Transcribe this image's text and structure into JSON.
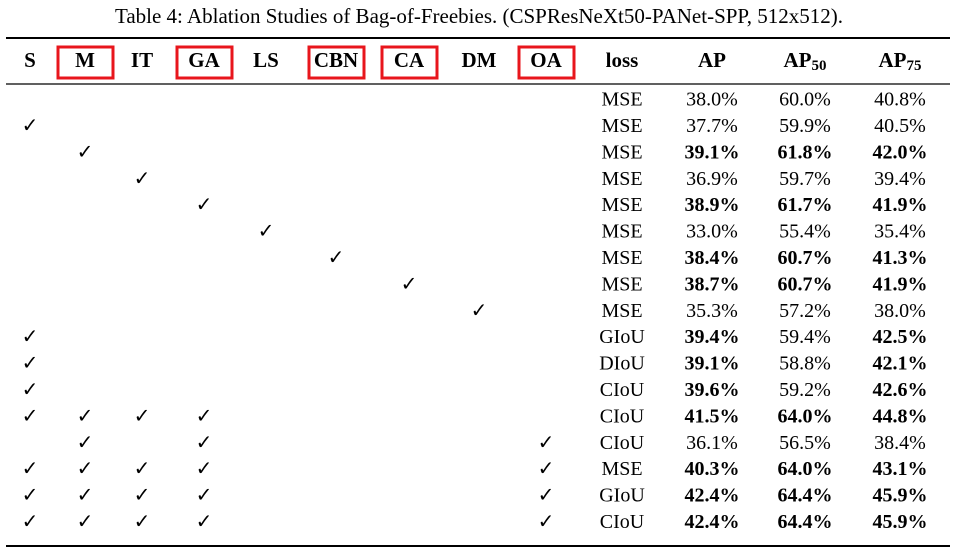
{
  "caption": "Table 4: Ablation Studies of Bag-of-Freebies. (CSPResNeXt50-PANet-SPP, 512x512).",
  "table": {
    "headers": [
      "S",
      "M",
      "IT",
      "GA",
      "LS",
      "CBN",
      "CA",
      "DM",
      "OA",
      "loss",
      "AP",
      {
        "main": "AP",
        "sub": "50"
      },
      {
        "main": "AP",
        "sub": "75"
      }
    ],
    "highlighted_columns": [
      1,
      3,
      5,
      6,
      8
    ],
    "highlight_color": "#e8161c",
    "rows": [
      {
        "checks": [
          null,
          null,
          null,
          null,
          null,
          null,
          null,
          null,
          null
        ],
        "loss": "MSE",
        "metrics": [
          "38.0%",
          "60.0%",
          "40.8%"
        ],
        "bold": [
          false,
          false,
          false
        ]
      },
      {
        "checks": [
          "✓",
          null,
          null,
          null,
          null,
          null,
          null,
          null,
          null
        ],
        "loss": "MSE",
        "metrics": [
          "37.7%",
          "59.9%",
          "40.5%"
        ],
        "bold": [
          false,
          false,
          false
        ]
      },
      {
        "checks": [
          null,
          "✓",
          null,
          null,
          null,
          null,
          null,
          null,
          null
        ],
        "loss": "MSE",
        "metrics": [
          "39.1%",
          "61.8%",
          "42.0%"
        ],
        "bold": [
          true,
          true,
          true
        ]
      },
      {
        "checks": [
          null,
          null,
          "✓",
          null,
          null,
          null,
          null,
          null,
          null
        ],
        "loss": "MSE",
        "metrics": [
          "36.9%",
          "59.7%",
          "39.4%"
        ],
        "bold": [
          false,
          false,
          false
        ]
      },
      {
        "checks": [
          null,
          null,
          null,
          "✓",
          null,
          null,
          null,
          null,
          null
        ],
        "loss": "MSE",
        "metrics": [
          "38.9%",
          "61.7%",
          "41.9%"
        ],
        "bold": [
          true,
          true,
          true
        ]
      },
      {
        "checks": [
          null,
          null,
          null,
          null,
          "✓",
          null,
          null,
          null,
          null
        ],
        "loss": "MSE",
        "metrics": [
          "33.0%",
          "55.4%",
          "35.4%"
        ],
        "bold": [
          false,
          false,
          false
        ]
      },
      {
        "checks": [
          null,
          null,
          null,
          null,
          null,
          "✓",
          null,
          null,
          null
        ],
        "loss": "MSE",
        "metrics": [
          "38.4%",
          "60.7%",
          "41.3%"
        ],
        "bold": [
          true,
          true,
          true
        ]
      },
      {
        "checks": [
          null,
          null,
          null,
          null,
          null,
          null,
          "✓",
          null,
          null
        ],
        "loss": "MSE",
        "metrics": [
          "38.7%",
          "60.7%",
          "41.9%"
        ],
        "bold": [
          true,
          true,
          true
        ]
      },
      {
        "checks": [
          null,
          null,
          null,
          null,
          null,
          null,
          null,
          "✓",
          null
        ],
        "loss": "MSE",
        "metrics": [
          "35.3%",
          "57.2%",
          "38.0%"
        ],
        "bold": [
          false,
          false,
          false
        ]
      },
      {
        "checks": [
          "✓",
          null,
          null,
          null,
          null,
          null,
          null,
          null,
          null
        ],
        "loss": "GIoU",
        "metrics": [
          "39.4%",
          "59.4%",
          "42.5%"
        ],
        "bold": [
          true,
          false,
          true
        ]
      },
      {
        "checks": [
          "✓",
          null,
          null,
          null,
          null,
          null,
          null,
          null,
          null
        ],
        "loss": "DIoU",
        "metrics": [
          "39.1%",
          "58.8%",
          "42.1%"
        ],
        "bold": [
          true,
          false,
          true
        ]
      },
      {
        "checks": [
          "✓",
          null,
          null,
          null,
          null,
          null,
          null,
          null,
          null
        ],
        "loss": "CIoU",
        "metrics": [
          "39.6%",
          "59.2%",
          "42.6%"
        ],
        "bold": [
          true,
          false,
          true
        ]
      },
      {
        "checks": [
          "✓",
          "✓",
          "✓",
          "✓",
          null,
          null,
          null,
          null,
          null
        ],
        "loss": "CIoU",
        "metrics": [
          "41.5%",
          "64.0%",
          "44.8%"
        ],
        "bold": [
          true,
          true,
          true
        ]
      },
      {
        "checks": [
          null,
          "✓",
          null,
          "✓",
          null,
          null,
          null,
          null,
          "✓"
        ],
        "loss": "CIoU",
        "metrics": [
          "36.1%",
          "56.5%",
          "38.4%"
        ],
        "bold": [
          false,
          false,
          false
        ]
      },
      {
        "checks": [
          "✓",
          "✓",
          "✓",
          "✓",
          null,
          null,
          null,
          null,
          "✓"
        ],
        "loss": "MSE",
        "metrics": [
          "40.3%",
          "64.0%",
          "43.1%"
        ],
        "bold": [
          true,
          true,
          true
        ]
      },
      {
        "checks": [
          "✓",
          "✓",
          "✓",
          "✓",
          null,
          null,
          null,
          null,
          "✓"
        ],
        "loss": "GIoU",
        "metrics": [
          "42.4%",
          "64.4%",
          "45.9%"
        ],
        "bold": [
          true,
          true,
          true
        ]
      },
      {
        "checks": [
          "✓",
          "✓",
          "✓",
          "✓",
          null,
          null,
          null,
          null,
          "✓"
        ],
        "loss": "CIoU",
        "metrics": [
          "42.4%",
          "64.4%",
          "45.9%"
        ],
        "bold": [
          true,
          true,
          true
        ]
      }
    ]
  }
}
